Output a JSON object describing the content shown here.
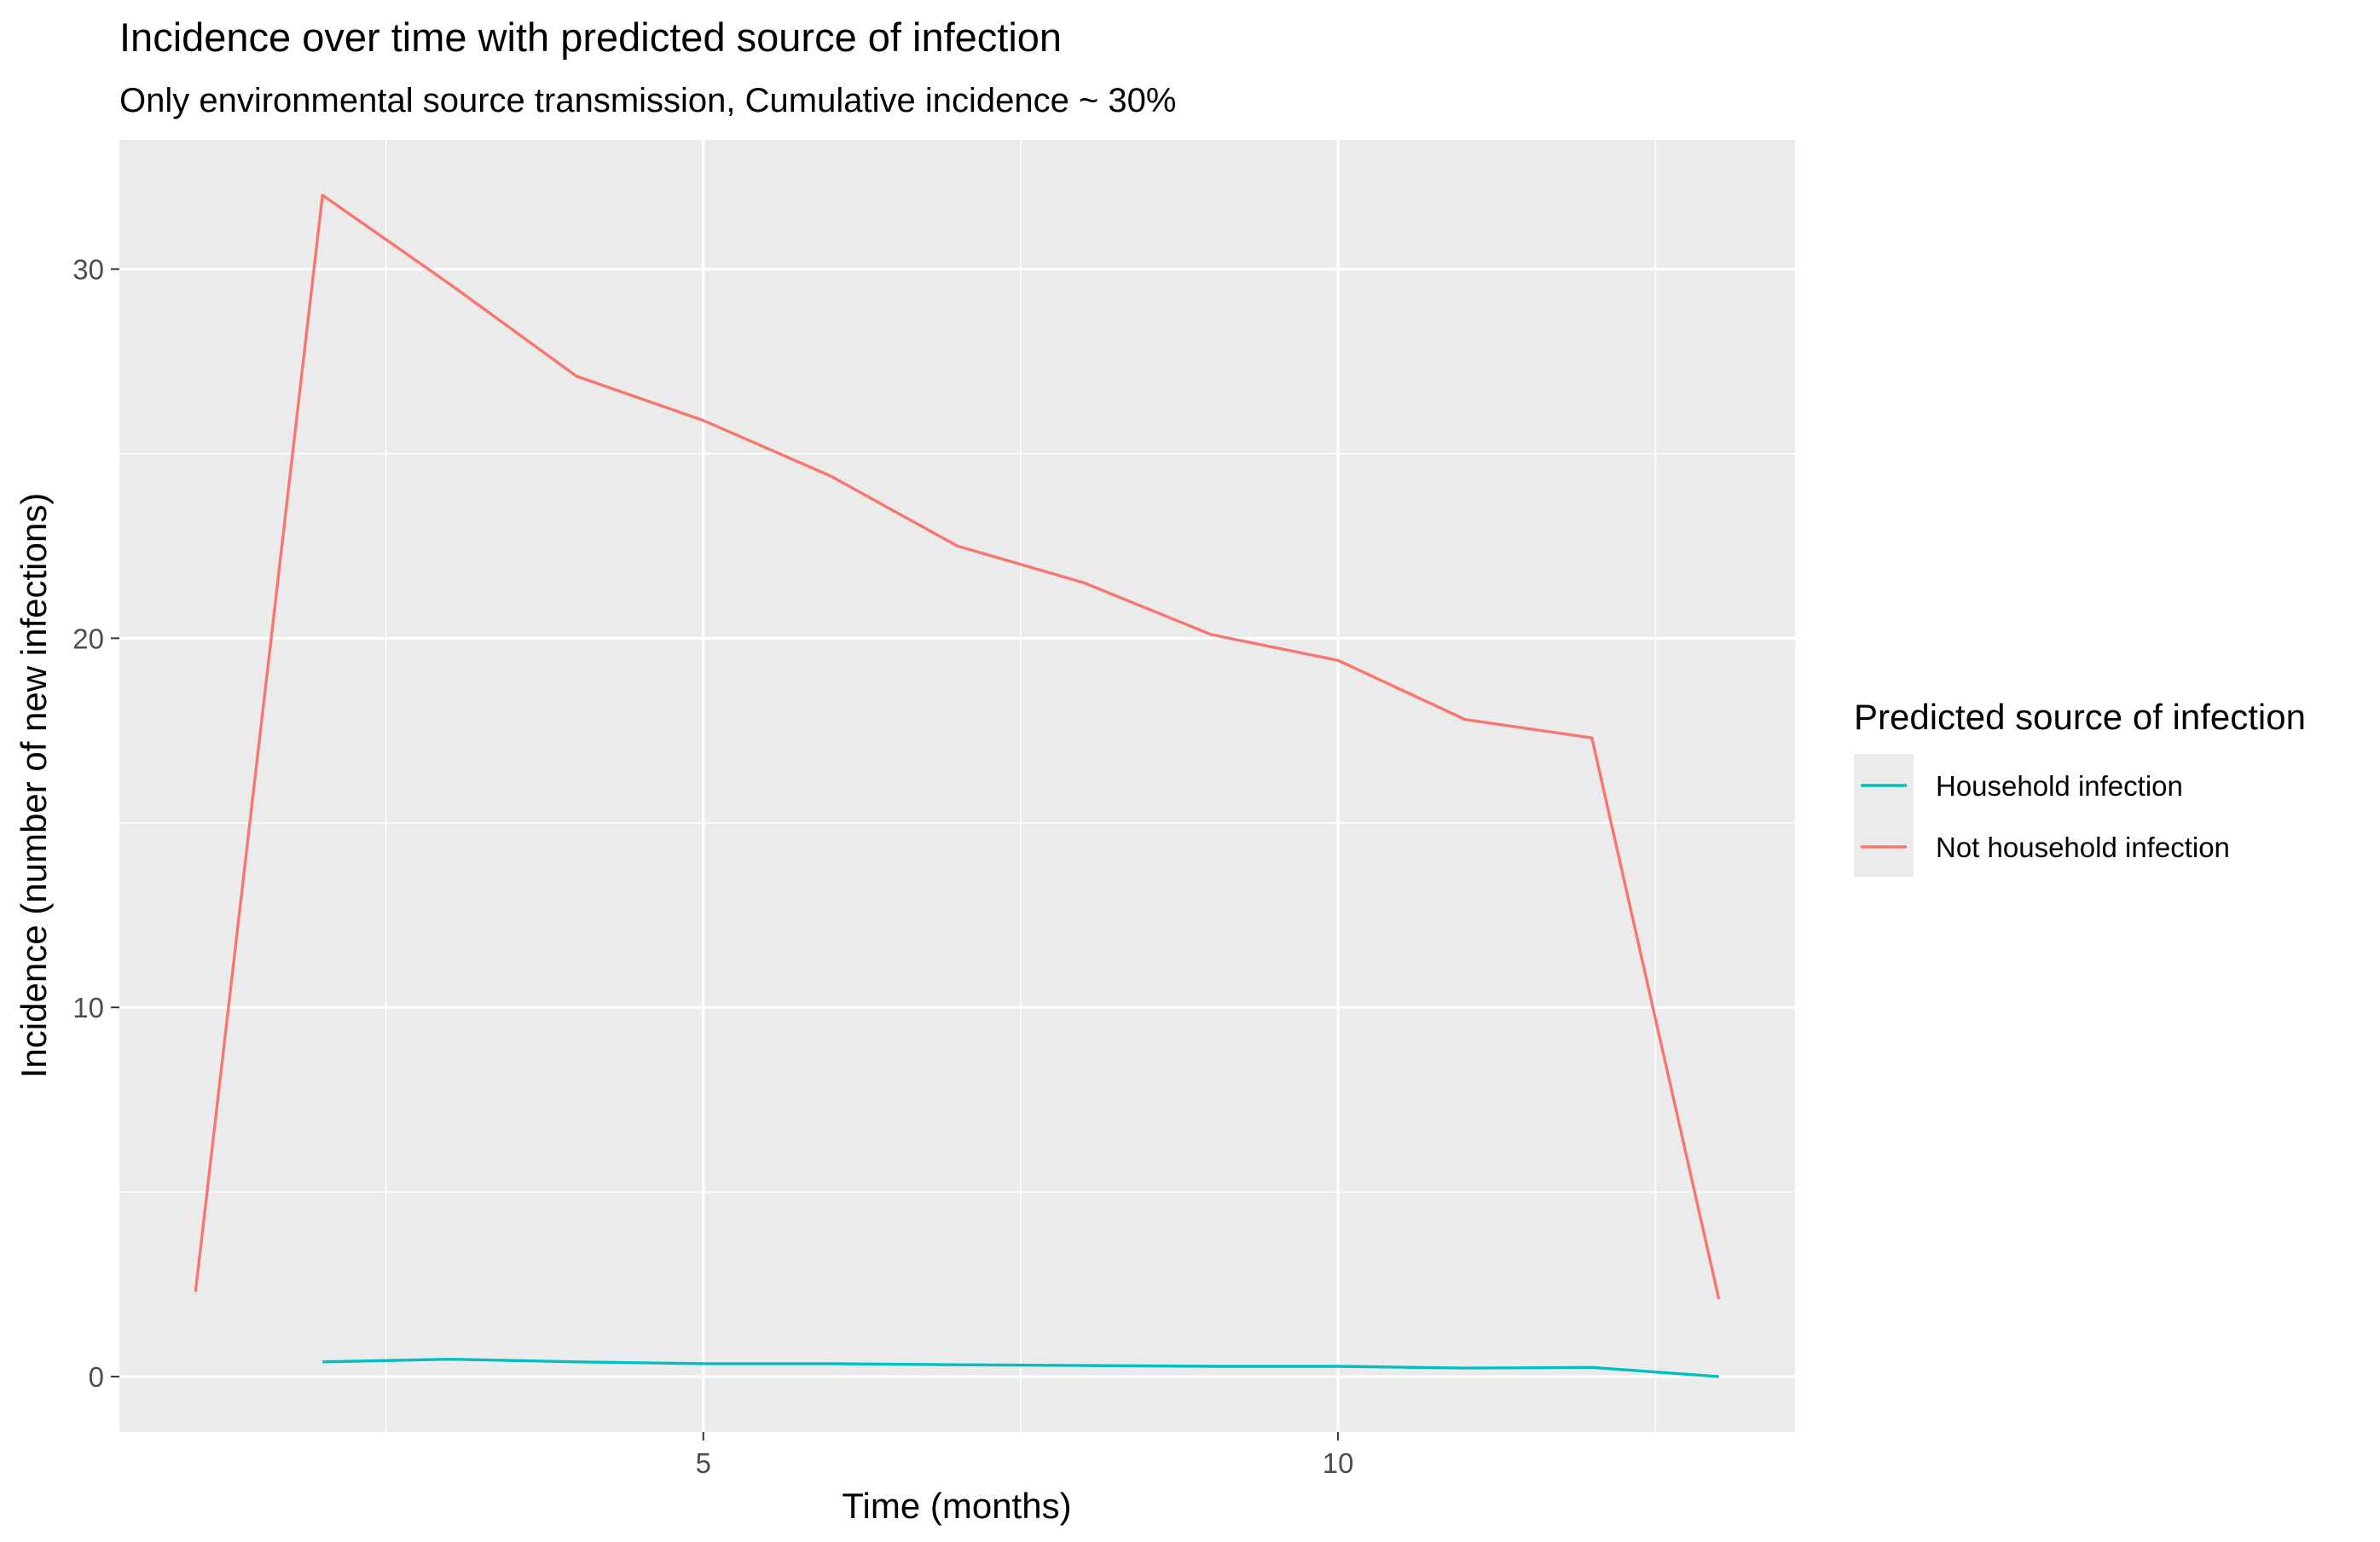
{
  "chart_data": {
    "type": "line",
    "title": "Incidence over time with predicted source of infection",
    "subtitle": "Only environmental source transmission, Cumulative incidence ~ 30%",
    "xlabel": "Time (months)",
    "ylabel": "Incidence (number of new infections)",
    "xlim": [
      0.4,
      13.6
    ],
    "ylim": [
      -1.5,
      33.5
    ],
    "x_ticks": [
      5,
      10
    ],
    "x_tick_labels": [
      "5",
      "10"
    ],
    "y_ticks": [
      0,
      10,
      20,
      30
    ],
    "y_tick_labels": [
      "0",
      "10",
      "20",
      "30"
    ],
    "grid": true,
    "background": "#ebebeb",
    "legend": {
      "title": "Predicted source of infection",
      "placement": "right"
    },
    "series": [
      {
        "name": "Household infection",
        "color": "#00bfc4",
        "x": [
          2,
          3,
          4,
          5,
          6,
          7,
          8,
          9,
          10,
          11,
          12,
          13
        ],
        "y": [
          0.4,
          0.47,
          0.4,
          0.35,
          0.35,
          0.32,
          0.3,
          0.28,
          0.28,
          0.23,
          0.25,
          0.0
        ]
      },
      {
        "name": "Not household infection",
        "color": "#f8766d",
        "x": [
          1,
          2,
          3,
          4,
          5,
          6,
          7,
          8,
          9,
          10,
          11,
          12,
          13
        ],
        "y": [
          2.3,
          32.0,
          29.6,
          27.1,
          25.9,
          24.4,
          22.5,
          21.5,
          20.1,
          19.4,
          17.8,
          17.3,
          2.1
        ]
      }
    ]
  }
}
